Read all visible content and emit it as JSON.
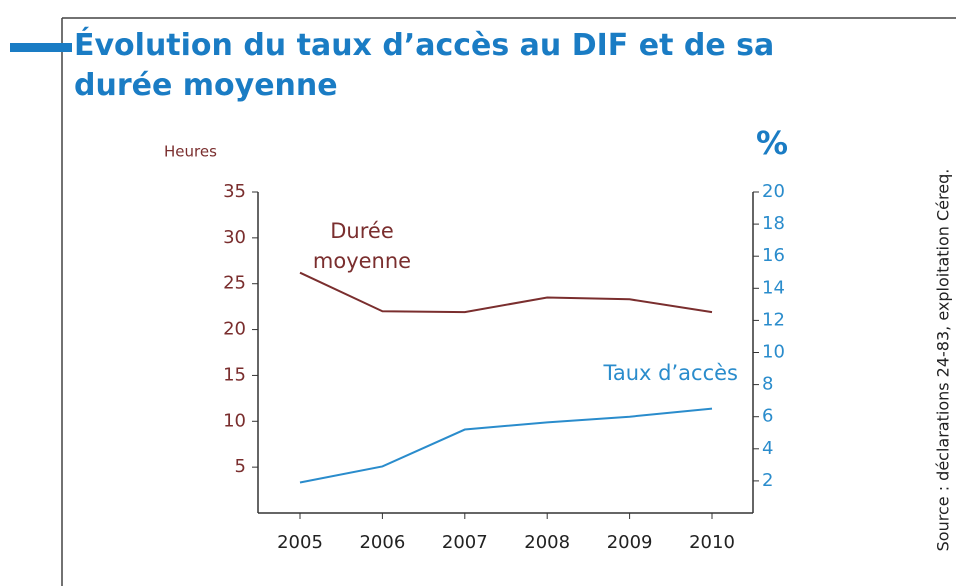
{
  "chart_data": {
    "type": "line",
    "title": "Évolution du taux d’accès au DIF et de sa durée moyenne",
    "ylabel": "Heures",
    "y2label": "%",
    "source": "Source : déclarations 24-83, exploitation Céreq.",
    "categories": [
      "2005",
      "2006",
      "2007",
      "2008",
      "2009",
      "2010"
    ],
    "series": [
      {
        "name": "Durée moyenne",
        "label_lines": [
          "Durée",
          "moyenne"
        ],
        "color": "#7a2e2e",
        "values": [
          26.2,
          22.0,
          21.9,
          23.5,
          23.3,
          21.9
        ]
      },
      {
        "name": "Taux d’accès",
        "color": "#2a8ccc",
        "axis": "y2",
        "values": [
          1.9,
          2.9,
          5.2,
          5.65,
          6.0,
          6.5
        ]
      }
    ],
    "ylim": [
      0,
      35
    ],
    "yticks": [
      5,
      10,
      15,
      20,
      25,
      30,
      35
    ],
    "y2lim": [
      0,
      20
    ],
    "y2ticks": [
      2,
      4,
      6,
      8,
      10,
      12,
      14,
      16,
      18,
      20
    ]
  }
}
